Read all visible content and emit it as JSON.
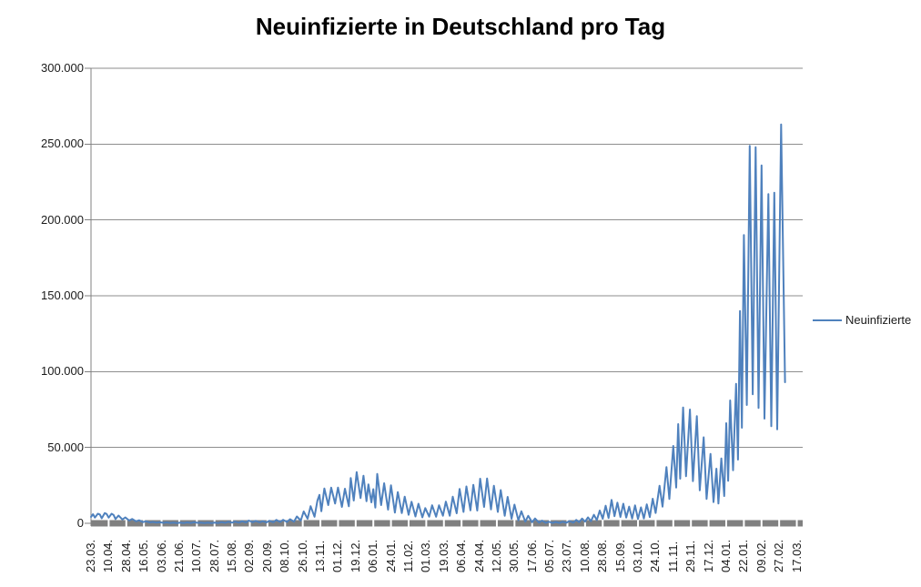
{
  "chart_data": {
    "type": "line",
    "title": "Neuinfizierte in Deutschland pro Tag",
    "legend": {
      "entries": [
        "Neuinfizierte"
      ],
      "position": "right"
    },
    "grid": true,
    "ylim": [
      0,
      300000
    ],
    "ytick_step": 50000,
    "ytick_labels": [
      "300.000",
      "250.000",
      "200.000",
      "150.000",
      "100.000",
      "50.000",
      "0"
    ],
    "x_label_interval": 18,
    "x_total_categories": 726,
    "x_tick_labels": [
      "23.03.",
      "10.04.",
      "28.04.",
      "16.05.",
      "03.06.",
      "21.06.",
      "10.07.",
      "28.07.",
      "15.08.",
      "02.09.",
      "20.09.",
      "08.10.",
      "26.10.",
      "13.11.",
      "01.12.",
      "19.12.",
      "06.01.",
      "24.01.",
      "11.02.",
      "01.03.",
      "19.03.",
      "06.04.",
      "24.04.",
      "12.05.",
      "30.05.",
      "17.06.",
      "05.07.",
      "23.07.",
      "10.08.",
      "28.08.",
      "15.09.",
      "03.10.",
      "24.10.",
      "11.11.",
      "29.11.",
      "17.12.",
      "04.01.",
      "22.01.",
      "09.02.",
      "27.02.",
      "17.03."
    ],
    "series": [
      {
        "name": "Neuinfizierte",
        "color": "#4F81BD",
        "points": [
          [
            0,
            4200
          ],
          [
            2,
            6000
          ],
          [
            4,
            3800
          ],
          [
            7,
            6300
          ],
          [
            9,
            5800
          ],
          [
            11,
            3300
          ],
          [
            14,
            6700
          ],
          [
            16,
            6100
          ],
          [
            18,
            3700
          ],
          [
            21,
            6300
          ],
          [
            23,
            5500
          ],
          [
            25,
            2800
          ],
          [
            28,
            5100
          ],
          [
            32,
            2500
          ],
          [
            35,
            3900
          ],
          [
            39,
            1800
          ],
          [
            42,
            2900
          ],
          [
            46,
            1300
          ],
          [
            49,
            2000
          ],
          [
            53,
            800
          ],
          [
            56,
            1300
          ],
          [
            60,
            600
          ],
          [
            63,
            900
          ],
          [
            67,
            400
          ],
          [
            70,
            700
          ],
          [
            74,
            300
          ],
          [
            77,
            600
          ],
          [
            81,
            250
          ],
          [
            84,
            500
          ],
          [
            88,
            200
          ],
          [
            91,
            400
          ],
          [
            95,
            180
          ],
          [
            98,
            600
          ],
          [
            102,
            250
          ],
          [
            105,
            700
          ],
          [
            109,
            300
          ],
          [
            112,
            500
          ],
          [
            116,
            200
          ],
          [
            119,
            400
          ],
          [
            123,
            180
          ],
          [
            126,
            500
          ],
          [
            130,
            200
          ],
          [
            133,
            800
          ],
          [
            137,
            300
          ],
          [
            140,
            1000
          ],
          [
            144,
            400
          ],
          [
            147,
            1100
          ],
          [
            151,
            450
          ],
          [
            154,
            1400
          ],
          [
            158,
            550
          ],
          [
            161,
            1800
          ],
          [
            165,
            700
          ],
          [
            168,
            1600
          ],
          [
            172,
            600
          ],
          [
            175,
            1400
          ],
          [
            179,
            600
          ],
          [
            182,
            1700
          ],
          [
            186,
            700
          ],
          [
            189,
            2200
          ],
          [
            193,
            900
          ],
          [
            196,
            2300
          ],
          [
            200,
            900
          ],
          [
            203,
            2700
          ],
          [
            207,
            1100
          ],
          [
            210,
            4500
          ],
          [
            214,
            1800
          ],
          [
            217,
            7800
          ],
          [
            221,
            3000
          ],
          [
            224,
            11300
          ],
          [
            228,
            4300
          ],
          [
            231,
            15000
          ],
          [
            233,
            18700
          ],
          [
            235,
            8000
          ],
          [
            238,
            23000
          ],
          [
            242,
            12000
          ],
          [
            245,
            23500
          ],
          [
            249,
            13000
          ],
          [
            252,
            23600
          ],
          [
            256,
            10800
          ],
          [
            259,
            22800
          ],
          [
            263,
            11200
          ],
          [
            265,
            29900
          ],
          [
            268,
            15000
          ],
          [
            271,
            33700
          ],
          [
            275,
            16600
          ],
          [
            278,
            31300
          ],
          [
            281,
            14500
          ],
          [
            283,
            25700
          ],
          [
            286,
            13800
          ],
          [
            288,
            22500
          ],
          [
            290,
            10300
          ],
          [
            292,
            32500
          ],
          [
            296,
            12000
          ],
          [
            299,
            26400
          ],
          [
            303,
            9000
          ],
          [
            306,
            25100
          ],
          [
            310,
            7100
          ],
          [
            313,
            20600
          ],
          [
            317,
            6700
          ],
          [
            320,
            17600
          ],
          [
            324,
            5600
          ],
          [
            327,
            14200
          ],
          [
            331,
            4500
          ],
          [
            334,
            12900
          ],
          [
            338,
            3900
          ],
          [
            341,
            10000
          ],
          [
            345,
            4400
          ],
          [
            348,
            11900
          ],
          [
            352,
            4300
          ],
          [
            355,
            11900
          ],
          [
            359,
            5000
          ],
          [
            362,
            14300
          ],
          [
            366,
            5000
          ],
          [
            369,
            17500
          ],
          [
            373,
            6600
          ],
          [
            376,
            22700
          ],
          [
            380,
            7500
          ],
          [
            383,
            24300
          ],
          [
            387,
            8500
          ],
          [
            390,
            25400
          ],
          [
            394,
            8400
          ],
          [
            397,
            29400
          ],
          [
            401,
            10800
          ],
          [
            404,
            29600
          ],
          [
            408,
            9200
          ],
          [
            411,
            24700
          ],
          [
            415,
            7500
          ],
          [
            418,
            21900
          ],
          [
            422,
            5000
          ],
          [
            425,
            17400
          ],
          [
            429,
            3000
          ],
          [
            432,
            12300
          ],
          [
            436,
            1900
          ],
          [
            439,
            7900
          ],
          [
            443,
            1100
          ],
          [
            446,
            4900
          ],
          [
            450,
            700
          ],
          [
            453,
            3200
          ],
          [
            457,
            450
          ],
          [
            460,
            1800
          ],
          [
            464,
            270
          ],
          [
            467,
            1000
          ],
          [
            471,
            220
          ],
          [
            474,
            900
          ],
          [
            478,
            250
          ],
          [
            481,
            1000
          ],
          [
            485,
            350
          ],
          [
            488,
            1500
          ],
          [
            492,
            500
          ],
          [
            495,
            2200
          ],
          [
            498,
            800
          ],
          [
            501,
            3100
          ],
          [
            504,
            1100
          ],
          [
            507,
            3900
          ],
          [
            510,
            1400
          ],
          [
            513,
            5600
          ],
          [
            516,
            2100
          ],
          [
            519,
            8400
          ],
          [
            522,
            3000
          ],
          [
            525,
            11600
          ],
          [
            528,
            3500
          ],
          [
            531,
            15400
          ],
          [
            534,
            4700
          ],
          [
            537,
            13600
          ],
          [
            540,
            4200
          ],
          [
            543,
            12900
          ],
          [
            546,
            3800
          ],
          [
            549,
            11000
          ],
          [
            552,
            3100
          ],
          [
            555,
            11800
          ],
          [
            558,
            2800
          ],
          [
            561,
            10500
          ],
          [
            564,
            3200
          ],
          [
            567,
            12500
          ],
          [
            570,
            4100
          ],
          [
            573,
            16200
          ],
          [
            576,
            6800
          ],
          [
            580,
            24700
          ],
          [
            583,
            11000
          ],
          [
            587,
            37100
          ],
          [
            590,
            16000
          ],
          [
            594,
            51000
          ],
          [
            597,
            23600
          ],
          [
            599,
            65400
          ],
          [
            601,
            29400
          ],
          [
            604,
            76400
          ],
          [
            607,
            31000
          ],
          [
            611,
            75000
          ],
          [
            614,
            27800
          ],
          [
            618,
            70600
          ],
          [
            621,
            21700
          ],
          [
            625,
            56700
          ],
          [
            628,
            16100
          ],
          [
            632,
            45700
          ],
          [
            635,
            14000
          ],
          [
            638,
            36000
          ],
          [
            640,
            13000
          ],
          [
            643,
            42800
          ],
          [
            646,
            18000
          ],
          [
            648,
            66000
          ],
          [
            650,
            28000
          ],
          [
            652,
            81000
          ],
          [
            655,
            35000
          ],
          [
            658,
            92000
          ],
          [
            660,
            42000
          ],
          [
            662,
            140000
          ],
          [
            664,
            63000
          ],
          [
            666,
            190000
          ],
          [
            669,
            78000
          ],
          [
            672,
            248800
          ],
          [
            675,
            85000
          ],
          [
            678,
            247900
          ],
          [
            681,
            76000
          ],
          [
            684,
            236000
          ],
          [
            687,
            69000
          ],
          [
            691,
            217000
          ],
          [
            694,
            64000
          ],
          [
            697,
            218000
          ],
          [
            700,
            62000
          ],
          [
            704,
            263000
          ],
          [
            708,
            93000
          ]
        ]
      }
    ]
  },
  "colors": {
    "line": "#4F81BD",
    "gridline": "#8E8E8E",
    "axis_band": "#808080",
    "axis_line": "#808080",
    "title_text": "#000000",
    "label_text": "#1A1A1A",
    "background": "#FFFFFF"
  }
}
